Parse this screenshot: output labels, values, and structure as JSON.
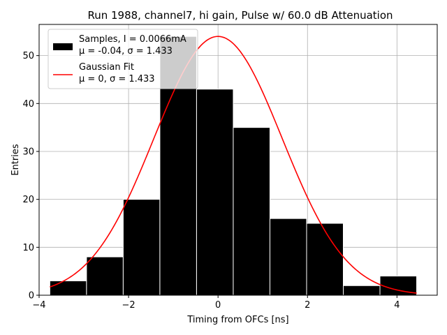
{
  "chart_data": {
    "type": "bar",
    "title": "Run 1988, channel7, hi gain, Pulse w/ 60.0 dB Attenuation",
    "xlabel": "Timing from OFCs [ns]",
    "ylabel": "Entries",
    "xlim": [
      -4.0,
      4.9
    ],
    "ylim": [
      0,
      56.5
    ],
    "grid": true,
    "x_ticks": [
      -4,
      -2,
      0,
      2,
      4
    ],
    "x_tick_labels": [
      "−4",
      "−2",
      "0",
      "2",
      "4"
    ],
    "y_ticks": [
      0,
      10,
      20,
      30,
      40,
      50
    ],
    "y_tick_labels": [
      "0",
      "10",
      "20",
      "30",
      "40",
      "50"
    ],
    "histogram": {
      "name": "Samples",
      "bin_edges": [
        -3.76,
        -2.94,
        -2.12,
        -1.3,
        -0.48,
        0.34,
        1.16,
        1.98,
        2.8,
        3.62,
        4.44
      ],
      "counts": [
        3,
        8,
        20,
        54,
        43,
        35,
        16,
        15,
        2,
        4
      ],
      "color": "#000000",
      "edge_color": "#ffffff"
    },
    "fit": {
      "name": "Gaussian Fit",
      "function": "gaussian",
      "mu": 0,
      "sigma": 1.433,
      "peak": 54,
      "x_range": [
        -3.76,
        4.44
      ],
      "color": "#ff0000"
    },
    "legend": {
      "placement": "top-left",
      "entries": [
        {
          "line1": "Samples, I = 0.0066mA",
          "line2": "μ = -0.04, σ = 1.433",
          "style": "patch",
          "color": "#000000"
        },
        {
          "line1": "Gaussian Fit",
          "line2": "μ = 0, σ = 1.433",
          "style": "line",
          "color": "#ff0000"
        }
      ]
    }
  }
}
